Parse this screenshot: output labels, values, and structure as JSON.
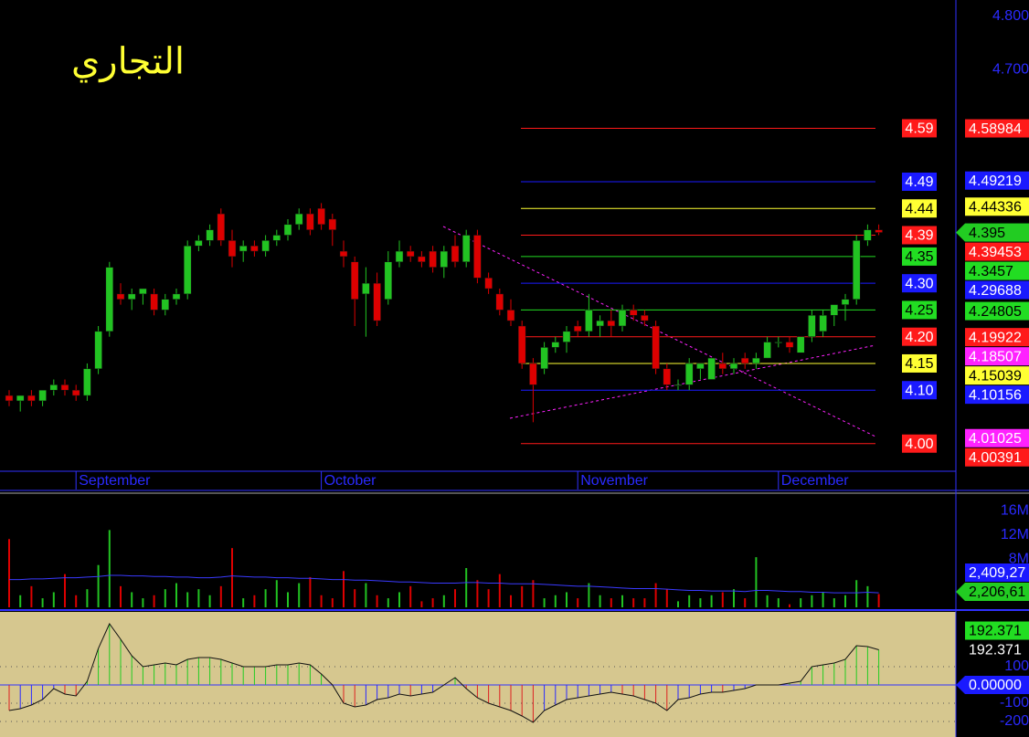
{
  "chart_data": [
    {
      "type": "candlestick",
      "title": "التجاري",
      "categories": [
        null,
        null,
        null,
        null,
        null,
        null,
        "September",
        null,
        null,
        null,
        null,
        null,
        null,
        null,
        null,
        null,
        null,
        null,
        null,
        null,
        null,
        null,
        null,
        null,
        null,
        null,
        null,
        null,
        "October",
        null,
        null,
        null,
        null,
        null,
        null,
        null,
        null,
        null,
        null,
        null,
        null,
        null,
        null,
        null,
        null,
        null,
        null,
        null,
        null,
        null,
        null,
        "November",
        null,
        null,
        null,
        null,
        null,
        null,
        null,
        null,
        null,
        null,
        null,
        null,
        null,
        null,
        null,
        null,
        null,
        "December",
        null,
        null,
        null,
        null,
        null,
        null,
        null,
        null,
        null
      ],
      "open": [
        4.09,
        4.08,
        4.09,
        4.08,
        4.1,
        4.11,
        4.1,
        4.09,
        4.14,
        4.21,
        4.28,
        4.27,
        4.28,
        4.28,
        4.25,
        4.27,
        4.28,
        4.37,
        4.38,
        4.43,
        4.38,
        4.36,
        4.37,
        4.36,
        4.38,
        4.39,
        4.41,
        4.43,
        4.44,
        4.42,
        4.36,
        4.34,
        4.28,
        4.3,
        4.27,
        4.34,
        4.36,
        4.35,
        4.36,
        4.33,
        4.37,
        4.34,
        4.39,
        4.31,
        4.28,
        4.25,
        4.22,
        4.15,
        4.14,
        4.18,
        4.19,
        4.22,
        4.21,
        4.22,
        4.23,
        4.22,
        4.25,
        4.24,
        4.22,
        4.14,
        4.11,
        4.11,
        4.14,
        4.12,
        4.15,
        4.14,
        4.16,
        4.15,
        4.16,
        4.19,
        4.19,
        4.17,
        4.2,
        4.21,
        4.24,
        4.26,
        4.27,
        4.38,
        4.4
      ],
      "high": [
        4.1,
        4.09,
        4.1,
        4.1,
        4.12,
        4.12,
        4.11,
        4.15,
        4.22,
        4.34,
        4.3,
        4.29,
        4.29,
        4.29,
        4.28,
        4.29,
        4.38,
        4.39,
        4.41,
        4.44,
        4.4,
        4.38,
        4.38,
        4.39,
        4.4,
        4.42,
        4.44,
        4.44,
        4.45,
        4.43,
        4.38,
        4.35,
        4.33,
        4.32,
        4.36,
        4.38,
        4.37,
        4.36,
        4.37,
        4.37,
        4.39,
        4.4,
        4.4,
        4.32,
        4.29,
        4.27,
        4.23,
        4.16,
        4.19,
        4.2,
        4.22,
        4.23,
        4.28,
        4.24,
        4.25,
        4.26,
        4.26,
        4.25,
        4.23,
        4.15,
        4.12,
        4.16,
        4.15,
        4.16,
        4.17,
        4.16,
        4.17,
        4.17,
        4.2,
        4.2,
        4.2,
        4.2,
        4.25,
        4.25,
        4.26,
        4.28,
        4.39,
        4.41,
        4.41
      ],
      "low": [
        4.07,
        4.06,
        4.07,
        4.07,
        4.09,
        4.09,
        4.08,
        4.08,
        4.13,
        4.2,
        4.26,
        4.25,
        4.26,
        4.24,
        4.24,
        4.26,
        4.27,
        4.36,
        4.37,
        4.37,
        4.33,
        4.34,
        4.35,
        4.35,
        4.37,
        4.38,
        4.4,
        4.39,
        4.4,
        4.37,
        4.33,
        4.22,
        4.2,
        4.22,
        4.26,
        4.33,
        4.34,
        4.33,
        4.32,
        4.31,
        4.33,
        4.33,
        4.3,
        4.28,
        4.24,
        4.22,
        4.14,
        4.04,
        4.13,
        4.17,
        4.17,
        4.2,
        4.2,
        4.2,
        4.2,
        4.21,
        4.23,
        4.22,
        4.13,
        4.1,
        4.1,
        4.1,
        4.12,
        4.12,
        4.13,
        4.13,
        4.14,
        4.14,
        4.16,
        4.18,
        4.17,
        4.17,
        4.19,
        4.2,
        4.22,
        4.23,
        4.26,
        4.37,
        4.39
      ],
      "close": [
        4.08,
        4.09,
        4.08,
        4.1,
        4.11,
        4.1,
        4.09,
        4.14,
        4.21,
        4.33,
        4.27,
        4.28,
        4.29,
        4.25,
        4.27,
        4.28,
        4.37,
        4.38,
        4.4,
        4.38,
        4.35,
        4.37,
        4.36,
        4.38,
        4.39,
        4.41,
        4.43,
        4.4,
        4.41,
        4.4,
        4.35,
        4.27,
        4.3,
        4.23,
        4.34,
        4.36,
        4.35,
        4.34,
        4.33,
        4.36,
        4.34,
        4.39,
        4.31,
        4.29,
        4.25,
        4.23,
        4.15,
        4.11,
        4.18,
        4.19,
        4.21,
        4.21,
        4.25,
        4.23,
        4.22,
        4.25,
        4.24,
        4.23,
        4.14,
        4.11,
        4.11,
        4.15,
        4.15,
        4.16,
        4.14,
        4.15,
        4.15,
        4.16,
        4.19,
        4.19,
        4.18,
        4.2,
        4.24,
        4.24,
        4.26,
        4.27,
        4.38,
        4.4,
        4.395
      ],
      "up_color": "#22c322",
      "down_color": "#dd0000",
      "ylim": [
        3.95,
        4.83
      ],
      "yticks": [
        {
          "value": 4.8,
          "label": "4.800"
        },
        {
          "value": 4.7,
          "label": "4.700"
        }
      ],
      "levels": [
        {
          "value": 4.59,
          "color": "#ff1a1a"
        },
        {
          "value": 4.49,
          "color": "#1a1aff"
        },
        {
          "value": 4.44,
          "color": "#ffff33"
        },
        {
          "value": 4.39,
          "color": "#ff1a1a"
        },
        {
          "value": 4.35,
          "color": "#22dd22"
        },
        {
          "value": 4.3,
          "label": "4.30",
          "color": "#1a1aff"
        },
        {
          "value": 4.25,
          "color": "#22dd22"
        },
        {
          "value": 4.2,
          "label": "4.20",
          "color": "#ff1a1a"
        },
        {
          "value": 4.15,
          "color": "#ffff33"
        },
        {
          "value": 4.1,
          "label": "4.10",
          "color": "#1a1aff"
        },
        {
          "value": 4.0,
          "label": "4.00",
          "color": "#ff1a1a"
        }
      ],
      "tags": [
        {
          "value": 4.58984,
          "color": "#ff1a1a"
        },
        {
          "value": 4.49219,
          "color": "#1a1aff"
        },
        {
          "value": 4.44336,
          "color": "#ffff33"
        },
        {
          "value": 4.395,
          "color": "#22cc22"
        },
        {
          "value": 4.39453,
          "color": "#ff1a1a"
        },
        {
          "value": 4.3457,
          "color": "#22dd22"
        },
        {
          "value": 4.29688,
          "color": "#1a1aff"
        },
        {
          "value": 4.24805,
          "color": "#22dd22"
        },
        {
          "value": 4.19922,
          "color": "#ff1a1a"
        },
        {
          "value": 4.18507,
          "color": "#ff22ff"
        },
        {
          "value": 4.15039,
          "color": "#ffff33"
        },
        {
          "value": 4.10156,
          "color": "#1a1aff"
        },
        {
          "value": 4.01025,
          "color": "#ff22ff"
        },
        {
          "value": 4.00391,
          "color": "#ff1a1a"
        }
      ]
    },
    {
      "type": "volume",
      "values": [
        11.3,
        2.0,
        3.5,
        1.5,
        2.5,
        5.5,
        2.0,
        3.0,
        7.0,
        12.8,
        3.5,
        2.5,
        1.5,
        2.0,
        3.0,
        4.0,
        2.5,
        3.0,
        2.0,
        3.5,
        9.8,
        1.5,
        2.0,
        3.0,
        4.5,
        2.5,
        4.0,
        5.0,
        2.0,
        1.5,
        6.0,
        3.0,
        4.0,
        2.0,
        1.5,
        2.5,
        3.5,
        1.0,
        1.5,
        2.0,
        3.0,
        6.5,
        4.5,
        3.0,
        5.5,
        2.0,
        3.5,
        4.5,
        1.5,
        2.0,
        2.5,
        1.5,
        4.0,
        2.0,
        1.5,
        2.0,
        1.5,
        1.5,
        4.0,
        3.0,
        1.0,
        2.0,
        1.5,
        2.0,
        2.5,
        3.0,
        1.5,
        8.3,
        2.0,
        1.5,
        0.5,
        1.5,
        2.0,
        2.5,
        1.5,
        2.0,
        4.5,
        3.5,
        2.2
      ],
      "average": [
        4.6,
        4.6,
        4.7,
        4.7,
        4.8,
        4.9,
        4.9,
        5.0,
        5.1,
        5.3,
        5.3,
        5.2,
        5.2,
        5.1,
        5.1,
        5.0,
        5.0,
        4.9,
        4.9,
        5.0,
        5.2,
        5.1,
        5.0,
        5.0,
        4.9,
        4.9,
        4.8,
        4.8,
        4.7,
        4.6,
        4.6,
        4.5,
        4.5,
        4.4,
        4.3,
        4.2,
        4.2,
        4.1,
        4.0,
        4.0,
        4.0,
        4.1,
        4.1,
        4.0,
        4.0,
        3.9,
        3.9,
        3.9,
        3.8,
        3.7,
        3.6,
        3.5,
        3.5,
        3.4,
        3.3,
        3.2,
        3.1,
        3.1,
        3.1,
        3.0,
        2.9,
        2.8,
        2.8,
        2.7,
        2.7,
        2.7,
        2.6,
        2.8,
        2.8,
        2.7,
        2.6,
        2.6,
        2.5,
        2.5,
        2.4,
        2.4,
        2.4,
        2.5,
        2.4
      ],
      "average_color": "#3a3aff",
      "ylim": [
        0,
        18.9
      ],
      "yticks": [
        {
          "value": 16,
          "label": "16M"
        },
        {
          "value": 12,
          "label": "12M"
        },
        {
          "value": 8,
          "label": "8M"
        }
      ],
      "tags": [
        {
          "label": "2,409,27",
          "color": "#1a1aff"
        },
        {
          "label": "2,206,61",
          "color": "#22cc22"
        }
      ]
    },
    {
      "type": "oscillator",
      "values": [
        -140,
        -130,
        -110,
        -80,
        -20,
        -50,
        -60,
        20,
        200,
        335,
        250,
        160,
        100,
        110,
        120,
        110,
        140,
        150,
        150,
        140,
        120,
        100,
        100,
        100,
        110,
        110,
        120,
        110,
        60,
        0,
        -100,
        -120,
        -110,
        -80,
        -70,
        -50,
        -60,
        -50,
        -40,
        0,
        40,
        -20,
        -70,
        -100,
        -120,
        -140,
        -170,
        -205,
        -140,
        -110,
        -80,
        -70,
        -60,
        -50,
        -40,
        -50,
        -60,
        -80,
        -100,
        -140,
        -80,
        -70,
        -50,
        -40,
        -40,
        -30,
        -20,
        0,
        0,
        0,
        10,
        20,
        100,
        110,
        120,
        140,
        215,
        210,
        192.371
      ],
      "ylim": [
        -285,
        400
      ],
      "yticks": [
        100,
        -100,
        -200
      ],
      "tags": [
        {
          "value": 192.371,
          "color": "#22dd22"
        },
        {
          "value": 192.371,
          "color": "#000000"
        },
        {
          "value": 0,
          "label": "0.00000",
          "color": "#1a1aff"
        }
      ]
    }
  ]
}
